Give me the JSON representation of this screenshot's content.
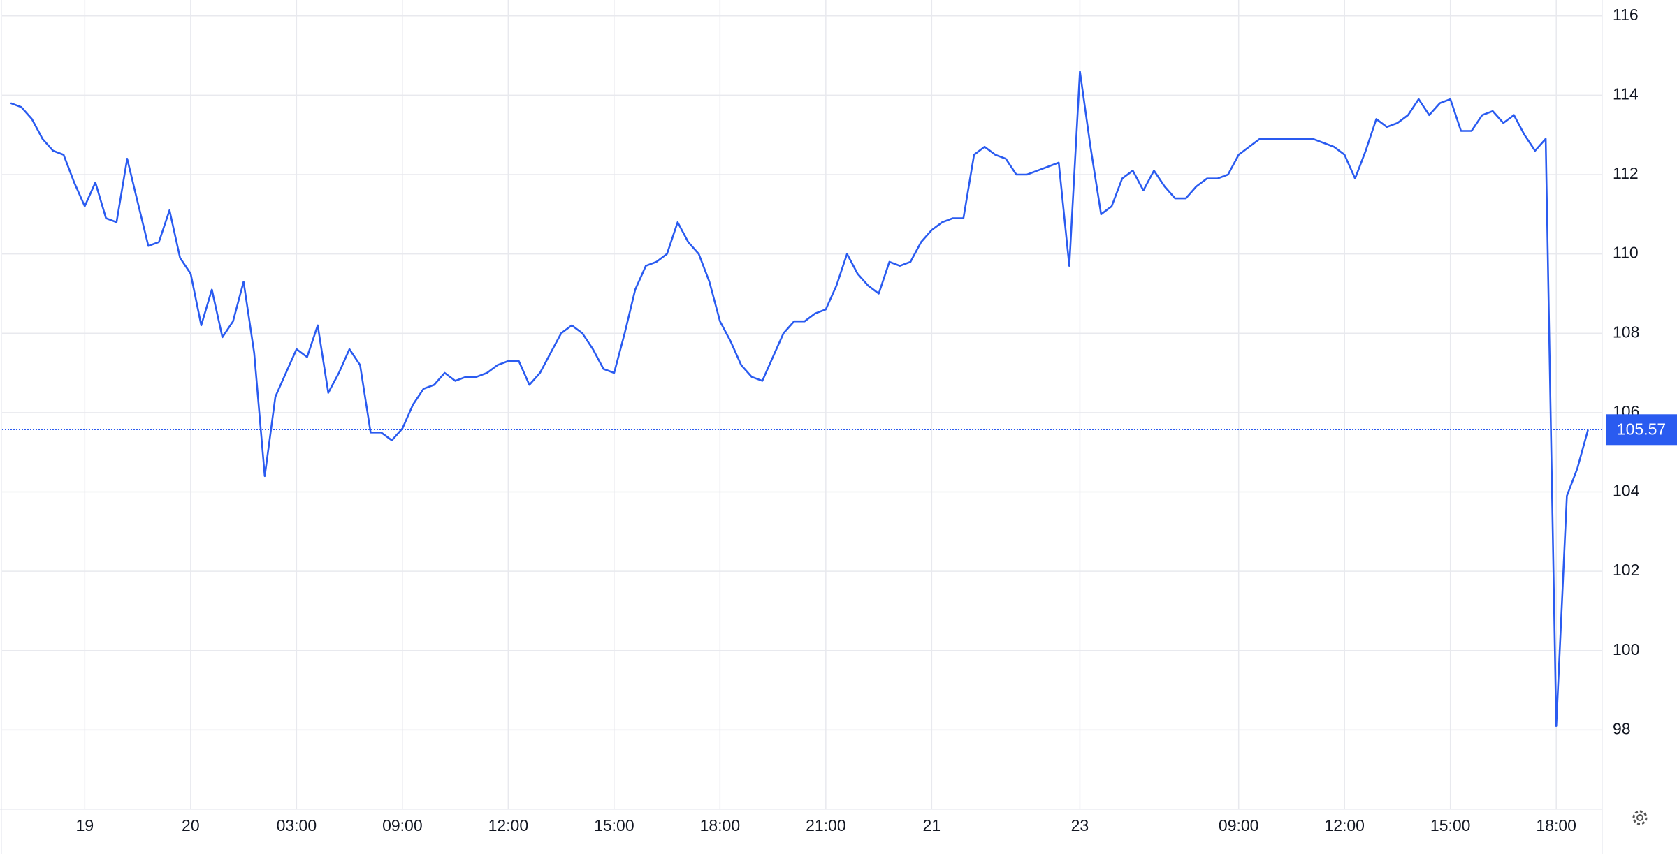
{
  "chart_data": {
    "type": "line",
    "categories": [
      null,
      null,
      null,
      null,
      null,
      null,
      null,
      "19",
      null,
      null,
      null,
      null,
      null,
      null,
      null,
      null,
      null,
      "20",
      null,
      null,
      null,
      null,
      null,
      null,
      null,
      null,
      null,
      "03:00",
      null,
      null,
      null,
      null,
      null,
      null,
      null,
      null,
      null,
      "09:00",
      null,
      null,
      null,
      null,
      null,
      null,
      null,
      null,
      null,
      "12:00",
      null,
      null,
      null,
      null,
      null,
      null,
      null,
      null,
      null,
      "15:00",
      null,
      null,
      null,
      null,
      null,
      null,
      null,
      null,
      null,
      "18:00",
      null,
      null,
      null,
      null,
      null,
      null,
      null,
      null,
      null,
      "21:00",
      null,
      null,
      null,
      null,
      null,
      null,
      null,
      null,
      null,
      "21",
      null,
      null,
      null,
      null,
      null,
      null,
      null,
      null,
      null,
      null,
      null,
      null,
      null,
      "23",
      null,
      null,
      null,
      null,
      null,
      null,
      null,
      null,
      null,
      null,
      null,
      null,
      null,
      null,
      "09:00",
      null,
      null,
      null,
      null,
      null,
      null,
      null,
      null,
      null,
      "12:00",
      null,
      null,
      null,
      null,
      null,
      null,
      null,
      null,
      null,
      "15:00",
      null,
      null,
      null,
      null,
      null,
      null,
      null,
      null,
      null,
      "18:00",
      null,
      null,
      null
    ],
    "series": [
      {
        "color": "#2a5bf0",
        "values": [
          113.8,
          113.7,
          113.4,
          112.9,
          112.6,
          112.5,
          111.8,
          111.2,
          111.8,
          110.9,
          110.8,
          112.4,
          111.3,
          110.2,
          110.3,
          111.1,
          109.9,
          109.5,
          108.2,
          109.1,
          107.9,
          108.3,
          109.3,
          107.5,
          104.4,
          106.4,
          107.0,
          107.6,
          107.4,
          108.2,
          106.5,
          107.0,
          107.6,
          107.2,
          105.5,
          105.5,
          105.3,
          105.6,
          106.2,
          106.6,
          106.7,
          107.0,
          106.8,
          106.9,
          106.9,
          107.0,
          107.2,
          107.3,
          107.3,
          106.7,
          107.0,
          107.5,
          108.0,
          108.2,
          108.0,
          107.6,
          107.1,
          107.0,
          108.0,
          109.1,
          109.7,
          109.8,
          110.0,
          110.8,
          110.3,
          110.0,
          109.3,
          108.3,
          107.8,
          107.2,
          106.9,
          106.8,
          107.4,
          108.0,
          108.3,
          108.3,
          108.5,
          108.6,
          109.2,
          110.0,
          109.5,
          109.2,
          109.0,
          109.8,
          109.7,
          109.8,
          110.3,
          110.6,
          110.8,
          110.9,
          110.9,
          112.5,
          112.7,
          112.5,
          112.4,
          112.0,
          112.0,
          112.1,
          112.2,
          112.3,
          109.7,
          114.6,
          112.7,
          111.0,
          111.2,
          111.9,
          112.1,
          111.6,
          112.1,
          111.7,
          111.4,
          111.4,
          111.7,
          111.9,
          111.9,
          112.0,
          112.5,
          112.7,
          112.9,
          112.9,
          112.9,
          112.9,
          112.9,
          112.9,
          112.8,
          112.7,
          112.5,
          111.9,
          112.6,
          113.4,
          113.2,
          113.3,
          113.5,
          113.9,
          113.5,
          113.8,
          113.9,
          113.1,
          113.1,
          113.5,
          113.6,
          113.3,
          113.5,
          113.0,
          112.6,
          112.9,
          98.1,
          103.9,
          104.6,
          105.57
        ]
      }
    ],
    "ylim": [
      96,
      116.4
    ],
    "yticks": [
      98,
      100,
      102,
      104,
      106,
      108,
      110,
      112,
      114,
      116
    ],
    "grid": true
  }
}
